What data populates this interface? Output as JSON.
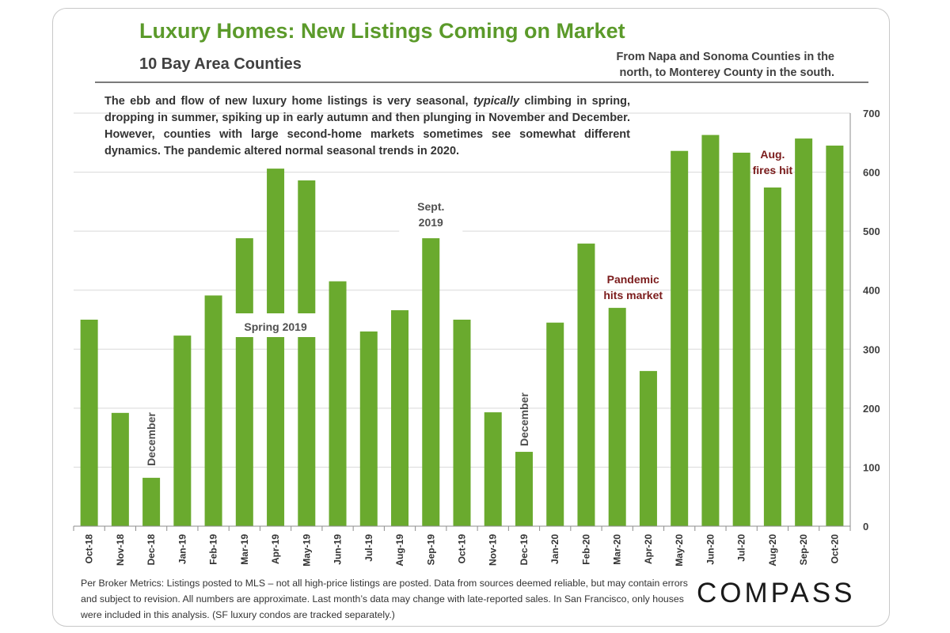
{
  "header": {
    "title": "Luxury Homes: New Listings Coming on Market",
    "subtitle": "10 Bay Area Counties",
    "scope_note": "From Napa and Sonoma Counties in the north, to Monterey County in the south."
  },
  "description": "The ebb and flow of new luxury home listings is very seasonal, typically climbing in spring, dropping in summer, spiking up in early autumn and then plunging in November and December. However, counties with large second-home markets sometimes see somewhat different dynamics. The pandemic altered normal seasonal trends in 2020.",
  "description_parts": {
    "before": "The ebb and flow of new luxury home listings is very seasonal, ",
    "emphasis": "typically",
    "after": " climbing in spring, dropping in summer, spiking up in early autumn and then plunging in November and December. However, counties with large second-home markets sometimes see somewhat different dynamics. The pandemic altered normal seasonal trends in 2020."
  },
  "footnote": "Per Broker Metrics: Listings posted to MLS – not all high-price listings are posted. Data from sources deemed reliable, but may contain errors and subject to revision. All numbers are approximate. Last month’s data may change with late-reported sales. In San Francisco, only houses were included in this analysis. (SF luxury condos are tracked separately.)",
  "logo": "COMPASS",
  "colors": {
    "bar": "#6aaa2e",
    "title": "#5b9a2a",
    "annotation_dark": "#7b1c1c",
    "annotation_gray": "#505050",
    "grid": "#d9d9d9"
  },
  "chart_data": {
    "type": "bar",
    "categories": [
      "Oct-18",
      "Nov-18",
      "Dec-18",
      "Jan-19",
      "Feb-19",
      "Mar-19",
      "Apr-19",
      "May-19",
      "Jun-19",
      "Jul-19",
      "Aug-19",
      "Sep-19",
      "Oct-19",
      "Nov-19",
      "Dec-19",
      "Jan-20",
      "Feb-20",
      "Mar-20",
      "Apr-20",
      "May-20",
      "Jun-20",
      "Jul-20",
      "Aug-20",
      "Sep-20",
      "Oct-20"
    ],
    "values": [
      350,
      192,
      82,
      323,
      391,
      488,
      606,
      586,
      415,
      330,
      366,
      488,
      350,
      193,
      126,
      345,
      479,
      370,
      263,
      636,
      663,
      633,
      574,
      657,
      645
    ],
    "ylim": [
      0,
      700
    ],
    "y_ticks": [
      0,
      100,
      200,
      300,
      400,
      500,
      600,
      700
    ],
    "y_axis_side": "right",
    "grid": true,
    "annotations": [
      {
        "text": "December",
        "index": 2,
        "orientation": "vertical",
        "style": "gray"
      },
      {
        "text": "Spring 2019",
        "index": 6,
        "orientation": "horizontal",
        "style": "gray-boxed"
      },
      {
        "text": "Sept. 2019",
        "index": 11,
        "orientation": "horizontal",
        "style": "gray"
      },
      {
        "text": "December",
        "index": 14,
        "orientation": "vertical",
        "style": "gray"
      },
      {
        "text": "Pandemic hits market",
        "index": 17,
        "orientation": "horizontal",
        "style": "dark-red"
      },
      {
        "text": "Aug. fires hit",
        "index": 22,
        "orientation": "horizontal",
        "style": "dark-red"
      }
    ]
  }
}
